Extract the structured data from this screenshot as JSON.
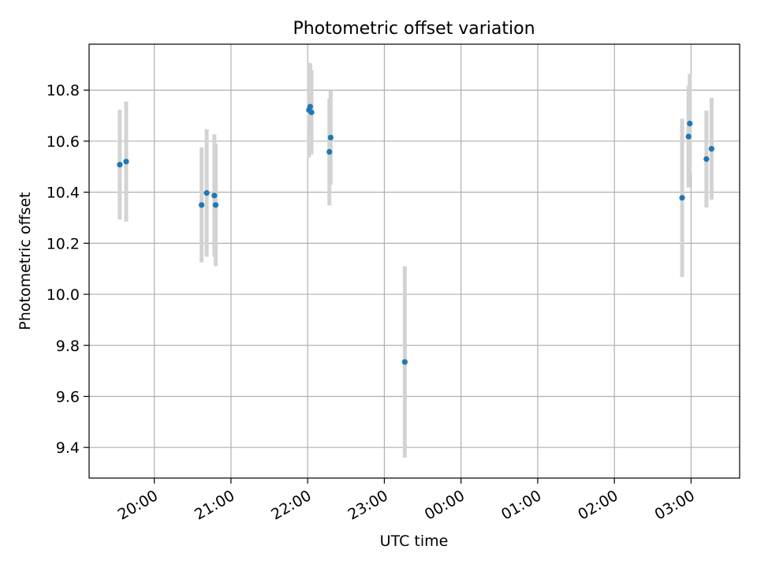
{
  "chart_data": {
    "type": "scatter",
    "title": "Photometric offset variation",
    "xlabel": "UTC time",
    "ylabel": "Photometric offset",
    "x_axis_kind": "time",
    "x_tick_labels": [
      "20:00",
      "21:00",
      "22:00",
      "23:00",
      "00:00",
      "01:00",
      "02:00",
      "03:00"
    ],
    "xlim": [
      "19:09",
      "03:38"
    ],
    "ylim": [
      9.28,
      10.98
    ],
    "y_ticks": [
      9.4,
      9.6,
      9.8,
      10.0,
      10.2,
      10.4,
      10.6,
      10.8
    ],
    "grid": true,
    "marker_color": "#1f77b4",
    "errorbar_color": "#d3d3d3",
    "points": [
      {
        "time": "19:33",
        "y": 10.508,
        "err": 0.215
      },
      {
        "time": "19:38",
        "y": 10.52,
        "err": 0.235
      },
      {
        "time": "20:37",
        "y": 10.35,
        "err": 0.225
      },
      {
        "time": "20:41",
        "y": 10.397,
        "err": 0.25
      },
      {
        "time": "20:47",
        "y": 10.387,
        "err": 0.24
      },
      {
        "time": "20:48",
        "y": 10.35,
        "err": 0.24
      },
      {
        "time": "22:01",
        "y": 10.722,
        "err": 0.185
      },
      {
        "time": "22:02",
        "y": 10.735,
        "err": 0.17
      },
      {
        "time": "22:03",
        "y": 10.713,
        "err": 0.165
      },
      {
        "time": "22:17",
        "y": 10.558,
        "err": 0.21
      },
      {
        "time": "22:18",
        "y": 10.614,
        "err": 0.185
      },
      {
        "time": "23:16",
        "y": 9.735,
        "err": 0.375
      },
      {
        "time": "02:53",
        "y": 10.378,
        "err": 0.31
      },
      {
        "time": "02:58",
        "y": 10.618,
        "err": 0.2
      },
      {
        "time": "02:59",
        "y": 10.669,
        "err": 0.195
      },
      {
        "time": "03:12",
        "y": 10.53,
        "err": 0.19
      },
      {
        "time": "03:16",
        "y": 10.57,
        "err": 0.2
      }
    ]
  }
}
